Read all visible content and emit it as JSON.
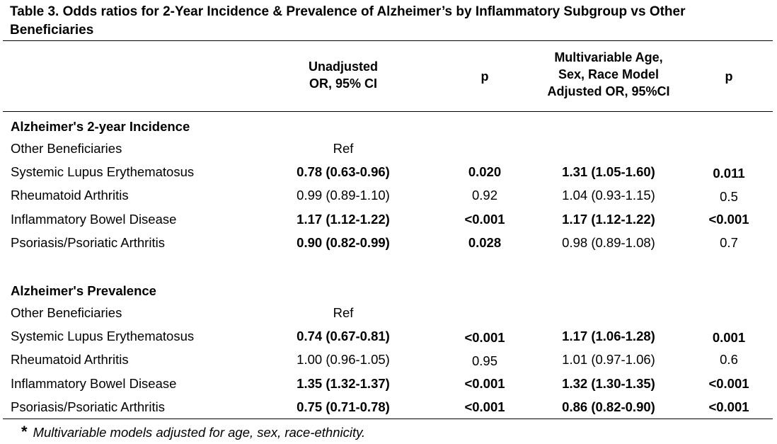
{
  "title": "Table 3. Odds ratios for 2-Year Incidence & Prevalence of Alzheimer’s by Inflammatory Subgroup vs Other Beneficiaries",
  "headers": {
    "unadjusted_line1": "Unadjusted",
    "unadjusted_line2": "OR, 95% CI",
    "p1": "p",
    "adjusted_line1": "Multivariable Age,",
    "adjusted_line2": "Sex, Race Model",
    "adjusted_line3": "Adjusted OR, 95%CI",
    "p2": "p"
  },
  "incidence": {
    "section_title": "Alzheimer's 2-year Incidence",
    "rows": [
      {
        "label": "Other Beneficiaries",
        "unadj": "Ref",
        "p1": "",
        "adj": "",
        "p2": ""
      },
      {
        "label": "Systemic Lupus Erythematosus",
        "unadj": "0.78 (0.63-0.96)",
        "p1": "0.020",
        "adj": "1.31 (1.05-1.60)",
        "p2": "0.011"
      },
      {
        "label": "Rheumatoid Arthritis",
        "unadj": "0.99 (0.89-1.10)",
        "p1": "0.92",
        "adj": "1.04 (0.93-1.15)",
        "p2": "0.5"
      },
      {
        "label": "Inflammatory Bowel Disease",
        "unadj": "1.17 (1.12-1.22)",
        "p1": "<0.001",
        "adj": "1.17 (1.12-1.22)",
        "p2": "<0.001"
      },
      {
        "label": "Psoriasis/Psoriatic Arthritis",
        "unadj": "0.90 (0.82-0.99)",
        "p1": "0.028",
        "adj": "0.98 (0.89-1.08)",
        "p2": "0.7"
      }
    ]
  },
  "prevalence": {
    "section_title": "Alzheimer's Prevalence",
    "rows": [
      {
        "label": "Other Beneficiaries",
        "unadj": "Ref",
        "p1": "",
        "adj": "",
        "p2": ""
      },
      {
        "label": "Systemic Lupus Erythematosus",
        "unadj": "0.74 (0.67-0.81)",
        "p1": "<0.001",
        "adj": "1.17 (1.06-1.28)",
        "p2": "0.001"
      },
      {
        "label": "Rheumatoid Arthritis",
        "unadj": "1.00 (0.96-1.05)",
        "p1": "0.95",
        "adj": "1.01 (0.97-1.06)",
        "p2": "0.6"
      },
      {
        "label": "Inflammatory Bowel Disease",
        "unadj": "1.35 (1.32-1.37)",
        "p1": "<0.001",
        "adj": "1.32 (1.30-1.35)",
        "p2": "<0.001"
      },
      {
        "label": "Psoriasis/Psoriatic Arthritis",
        "unadj": "0.75 (0.71-0.78)",
        "p1": "<0.001",
        "adj": "0.86 (0.82-0.90)",
        "p2": "<0.001"
      }
    ]
  },
  "footnote": {
    "marker": "*",
    "text": "Multivariable models adjusted for age, sex, race-ethnicity."
  }
}
